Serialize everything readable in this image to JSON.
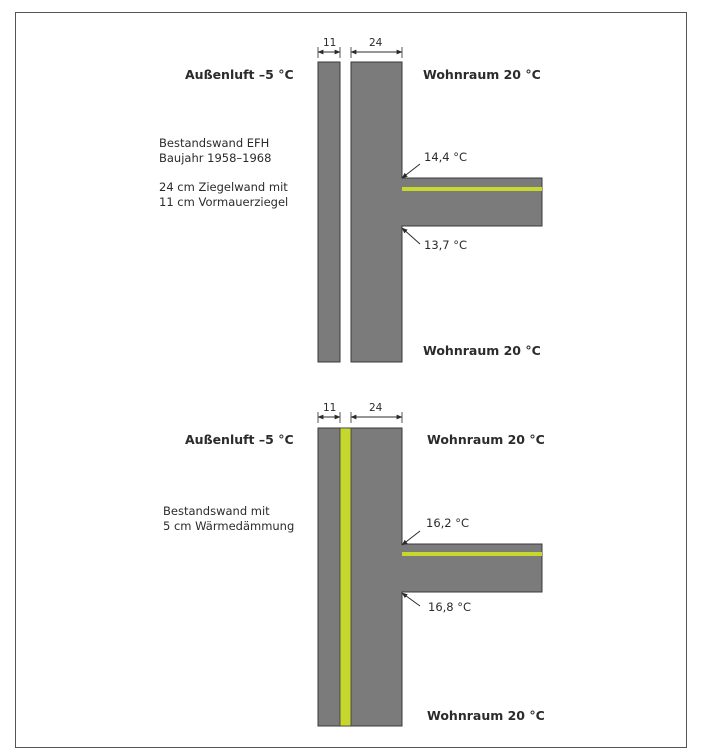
{
  "colors": {
    "wall": "#7b7b7b",
    "wall_edge": "#3a3a3a",
    "insulation": "#c6d82e",
    "text": "#2b2b2b"
  },
  "diagram_top": {
    "dim_outer": "11",
    "dim_inner": "24",
    "outside_label": "Außenluft –5 °C",
    "room_top_label": "Wohnraum 20 °C",
    "room_bottom_label": "Wohnraum 20 °C",
    "desc_line1": "Bestandswand EFH",
    "desc_line2": "Baujahr 1958–1968",
    "desc_line3": "24 cm Ziegelwand mit",
    "desc_line4": "11 cm Vormauerziegel",
    "temp_upper": "14,4 °C",
    "temp_lower": "13,7 °C"
  },
  "diagram_bottom": {
    "dim_outer": "11",
    "dim_inner": "24",
    "outside_label": "Außenluft –5 °C",
    "room_top_label": "Wohnraum 20 °C",
    "room_bottom_label": "Wohnraum 20 °C",
    "desc_line1": "Bestandswand mit",
    "desc_line2": "5 cm Wärmedämmung",
    "temp_upper": "16,2 °C",
    "temp_lower": "16,8 °C"
  }
}
